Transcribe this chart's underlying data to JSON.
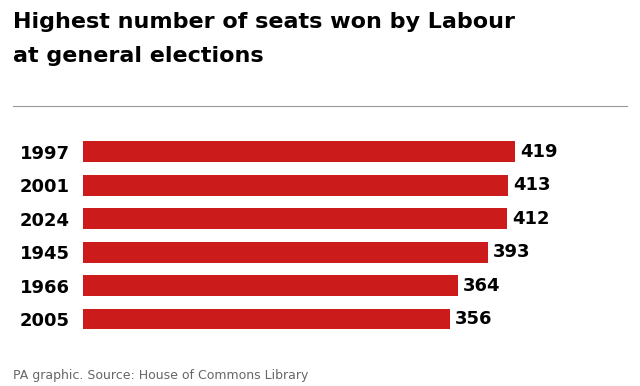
{
  "title_line1": "Highest number of seats won by Labour",
  "title_line2": "at general elections",
  "categories": [
    "1997",
    "2001",
    "2024",
    "1945",
    "1966",
    "2005"
  ],
  "values": [
    419,
    413,
    412,
    393,
    364,
    356
  ],
  "bar_color": "#cc1b1b",
  "value_color": "#000000",
  "label_color": "#000000",
  "title_color": "#000000",
  "background_color": "#ffffff",
  "source_text": "PA graphic. Source: House of Commons Library",
  "xlim_max": 460,
  "title_fontsize": 16,
  "label_fontsize": 13,
  "value_fontsize": 13,
  "source_fontsize": 9
}
